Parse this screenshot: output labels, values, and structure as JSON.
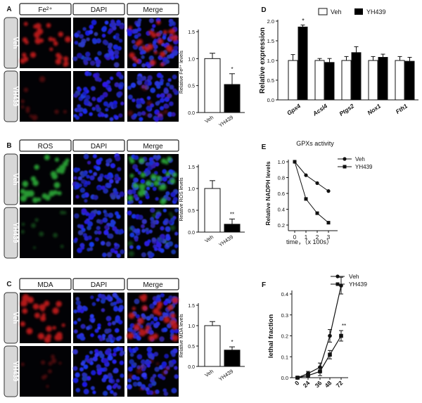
{
  "panels": [
    {
      "letter": "A",
      "headers": [
        "Fe²⁺",
        "DAPI",
        "Merge"
      ],
      "rows": [
        "Veh",
        "YH439"
      ],
      "micro_color": "#d21e1e",
      "bar": {
        "ylabel": "Relative Fe²⁺ levels",
        "ticks": [
          "0.0",
          "0.5",
          "1.0",
          "1.5"
        ],
        "categories": [
          "Veh",
          "YH439"
        ],
        "sig": "*"
      }
    },
    {
      "letter": "B",
      "headers": [
        "ROS",
        "DAPI",
        "Merge"
      ],
      "rows": [
        "Veh",
        "YH439"
      ],
      "micro_color": "#2fb43a",
      "bar": {
        "ylabel": "Relative ROS levels",
        "ticks": [
          "0.0",
          "0.5",
          "1.0",
          "1.5"
        ],
        "categories": [
          "Veh",
          "YH439"
        ],
        "sig": "**"
      }
    },
    {
      "letter": "C",
      "headers": [
        "MDA",
        "DAPI",
        "Merge"
      ],
      "rows": [
        "Veh",
        "YH439"
      ],
      "micro_color": "#d21e1e",
      "bar": {
        "ylabel": "Relative MDA levels",
        "ticks": [
          "0.0",
          "0.5",
          "1.0",
          "1.5"
        ],
        "categories": [
          "Veh",
          "YH439"
        ],
        "sig": "*"
      }
    }
  ],
  "panelD": {
    "letter": "D",
    "legend": [
      "Veh",
      "YH439"
    ],
    "ylabel": "Relative expression",
    "ticks": [
      "0.0",
      "0.5",
      "1.0",
      "1.5",
      "2.0"
    ],
    "categories": [
      "Gpx4",
      "Acsl4",
      "Ptgs2",
      "Nox1",
      "Fth1"
    ],
    "sig": "*"
  },
  "panelE": {
    "letter": "E",
    "title": "GPXs activity",
    "legend": [
      "Veh",
      "YH439"
    ],
    "ylabel": "Relative NADPH levels",
    "xlabel": "time，（x 100s）",
    "yticks": [
      "0.2",
      "0.4",
      "0.6",
      "0.8",
      "1.0"
    ],
    "xticks": [
      "0",
      "1",
      "2",
      "3"
    ]
  },
  "panelF": {
    "letter": "F",
    "legend": [
      "Veh",
      "YH439"
    ],
    "ylabel": "lethal fraction",
    "yticks": [
      "0.0",
      "0.1",
      "0.2",
      "0.3",
      "0.4"
    ],
    "xticks": [
      "0",
      "24",
      "36",
      "48",
      "72"
    ],
    "sig": "**"
  },
  "chart_data": [
    {
      "type": "bar",
      "title": "",
      "ylabel": "Relative Fe²⁺ levels",
      "categories": [
        "Veh",
        "YH439"
      ],
      "values": [
        1.0,
        0.52
      ],
      "errors": [
        0.1,
        0.2
      ],
      "colors": [
        "#ffffff",
        "#000000"
      ],
      "ylim": [
        0,
        1.5
      ]
    },
    {
      "type": "bar",
      "title": "",
      "ylabel": "Relative ROS levels",
      "categories": [
        "Veh",
        "YH439"
      ],
      "values": [
        1.0,
        0.18
      ],
      "errors": [
        0.18,
        0.12
      ],
      "colors": [
        "#ffffff",
        "#000000"
      ],
      "ylim": [
        0,
        1.5
      ]
    },
    {
      "type": "bar",
      "title": "",
      "ylabel": "Relative MDA levels",
      "categories": [
        "Veh",
        "YH439"
      ],
      "values": [
        1.0,
        0.4
      ],
      "errors": [
        0.1,
        0.08
      ],
      "colors": [
        "#ffffff",
        "#000000"
      ],
      "ylim": [
        0,
        1.5
      ]
    },
    {
      "type": "bar",
      "title": "",
      "ylabel": "Relative expression",
      "categories": [
        "Gpx4",
        "Acsl4",
        "Ptgs2",
        "Nox1",
        "Fth1"
      ],
      "series": [
        {
          "name": "Veh",
          "values": [
            1.0,
            1.0,
            1.0,
            1.0,
            1.0
          ],
          "errors": [
            0.15,
            0.05,
            0.1,
            0.1,
            0.1
          ],
          "color": "#ffffff"
        },
        {
          "name": "YH439",
          "values": [
            1.85,
            0.95,
            1.2,
            1.08,
            0.98
          ],
          "errors": [
            0.05,
            0.1,
            0.15,
            0.08,
            0.1
          ],
          "color": "#000000"
        }
      ],
      "ylim": [
        0,
        2.0
      ]
    },
    {
      "type": "line",
      "title": "GPXs activity",
      "xlabel": "time，（x 100s）",
      "ylabel": "Relative NADPH levels",
      "x": [
        0,
        1,
        2,
        3
      ],
      "series": [
        {
          "name": "Veh",
          "values": [
            1.0,
            0.83,
            0.73,
            0.63
          ],
          "marker": "circle"
        },
        {
          "name": "YH439",
          "values": [
            1.0,
            0.53,
            0.35,
            0.23
          ],
          "marker": "square"
        }
      ],
      "ylim": [
        0.2,
        1.0
      ]
    },
    {
      "type": "line",
      "title": "",
      "xlabel": "",
      "ylabel": "lethal fraction",
      "x": [
        0,
        24,
        36,
        48,
        72
      ],
      "series": [
        {
          "name": "Veh",
          "values": [
            0.0,
            0.02,
            0.05,
            0.2,
            0.44
          ],
          "errors": [
            0.005,
            0.01,
            0.02,
            0.03,
            0.04
          ],
          "marker": "circle"
        },
        {
          "name": "YH439",
          "values": [
            0.0,
            0.01,
            0.03,
            0.11,
            0.2
          ],
          "errors": [
            0.005,
            0.01,
            0.02,
            0.02,
            0.025
          ],
          "marker": "square"
        }
      ],
      "ylim": [
        0,
        0.45
      ]
    }
  ]
}
